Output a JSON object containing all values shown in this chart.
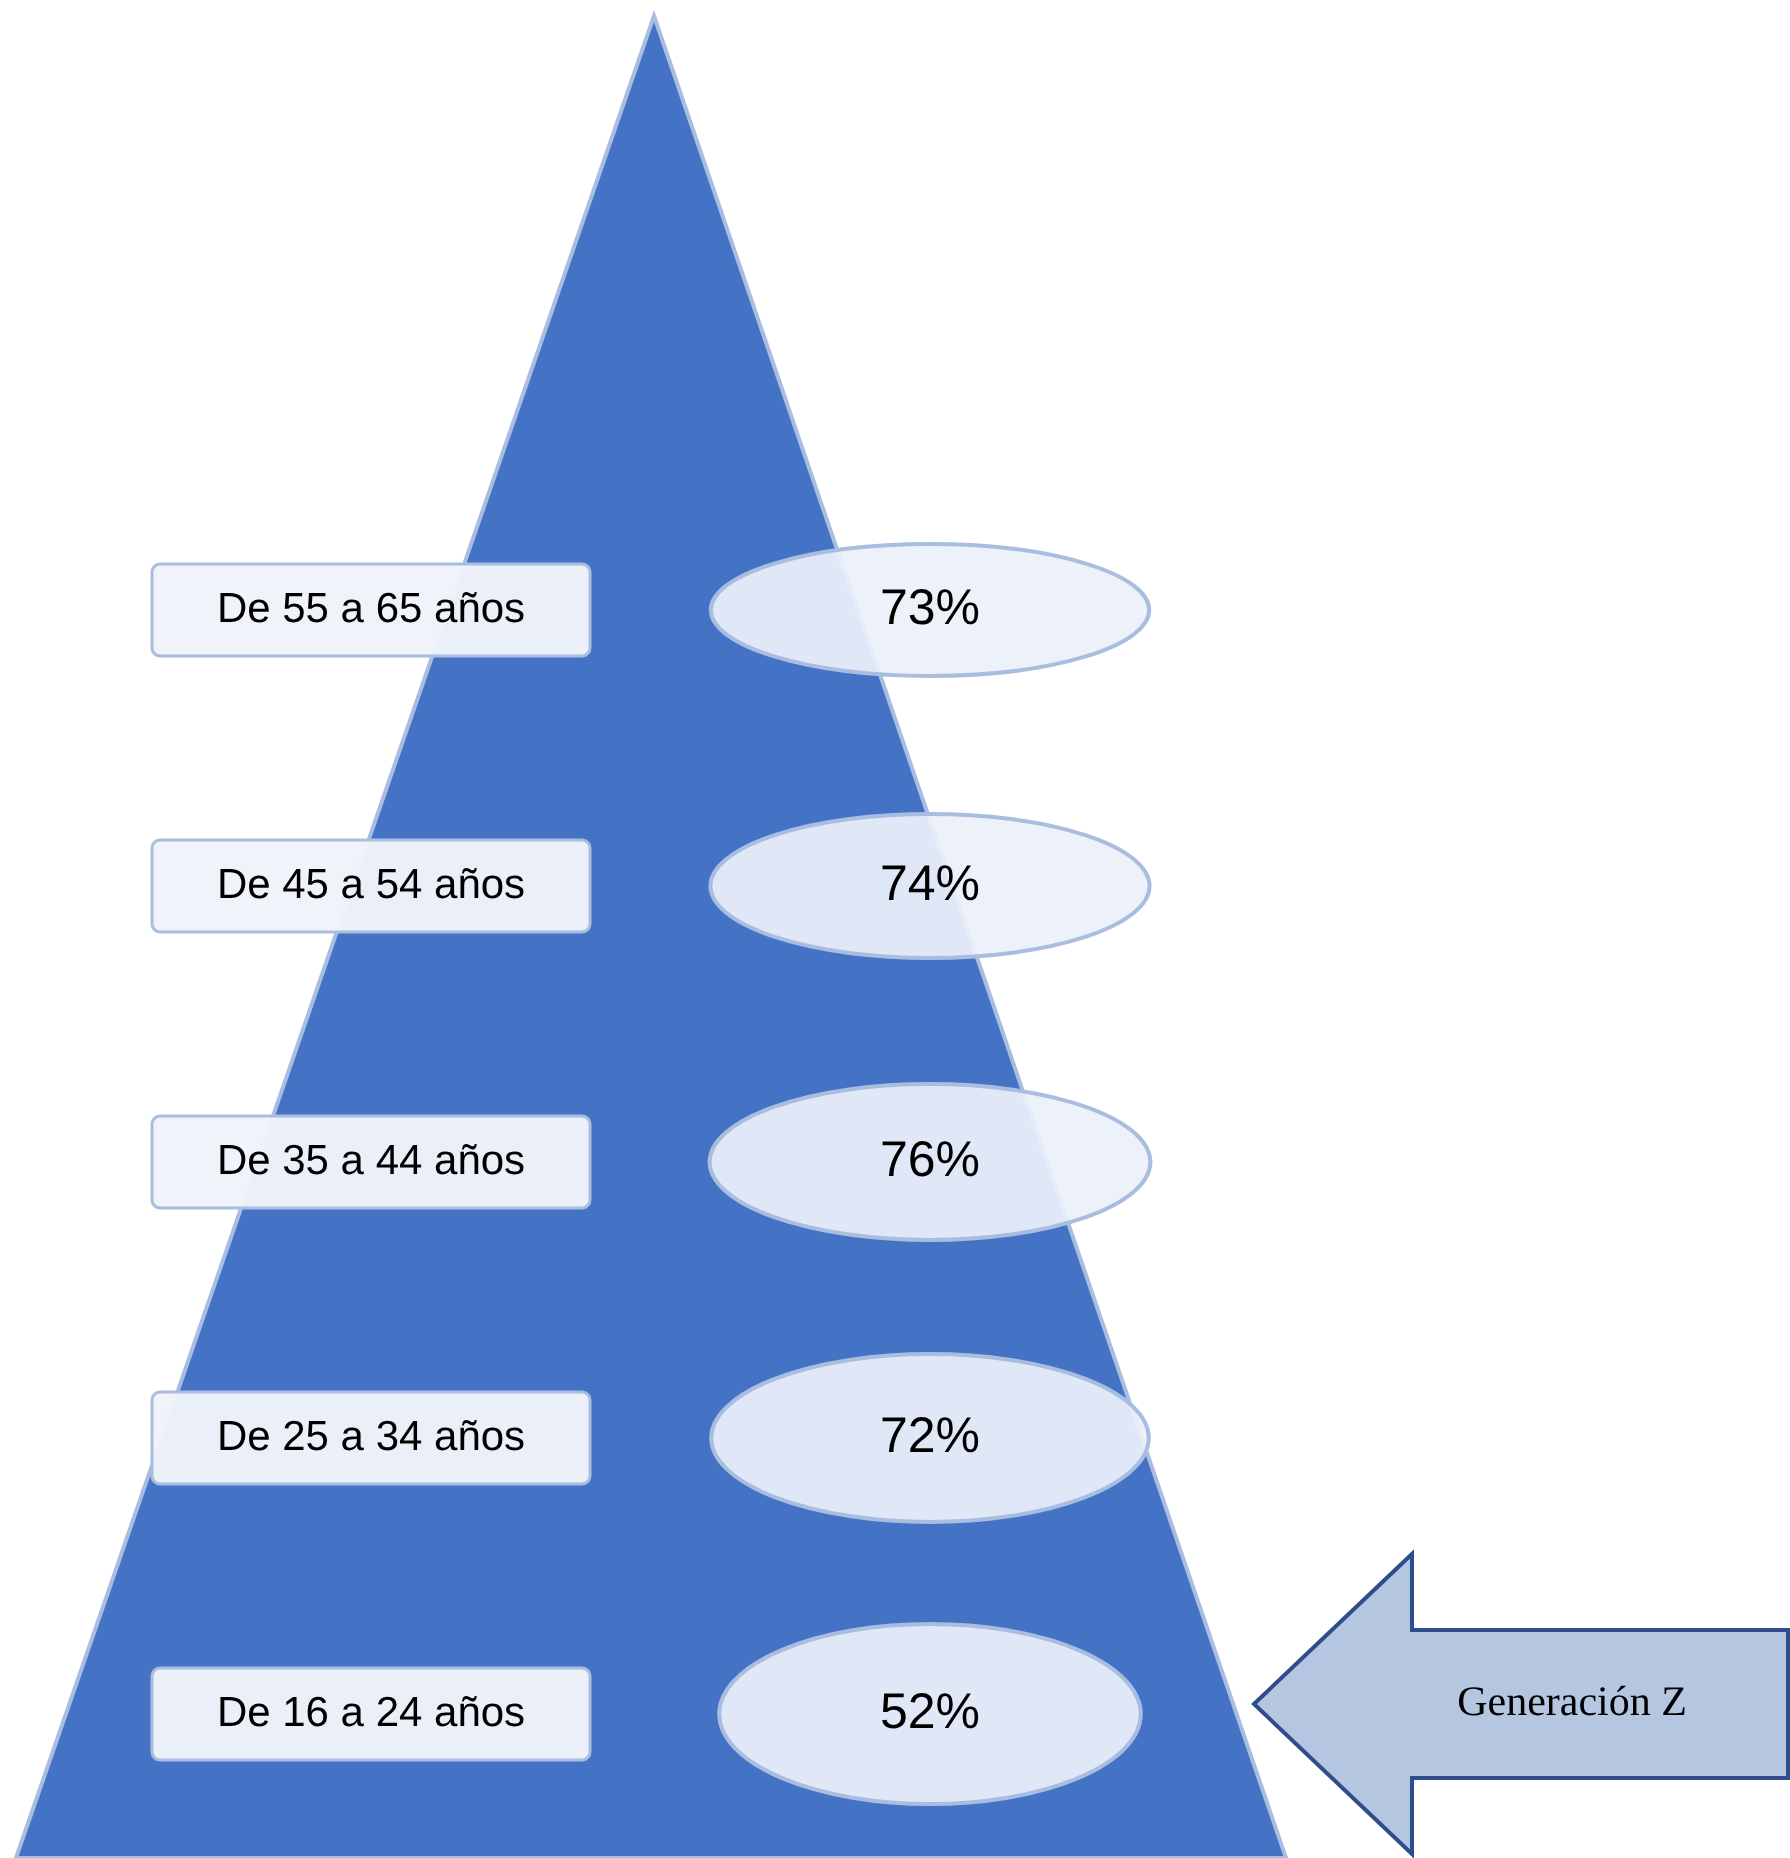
{
  "chart_data": {
    "type": "other",
    "categories": [
      "De 55 a 65 años",
      "De 45 a 54 años",
      "De 35 a 44 años",
      "De 25 a 34 años",
      "De 16 a 24 años"
    ],
    "values": [
      73,
      74,
      76,
      72,
      52
    ],
    "value_labels": [
      "73%",
      "74%",
      "76%",
      "72%",
      "52%"
    ],
    "annotations": [
      "Generación Z"
    ]
  }
}
